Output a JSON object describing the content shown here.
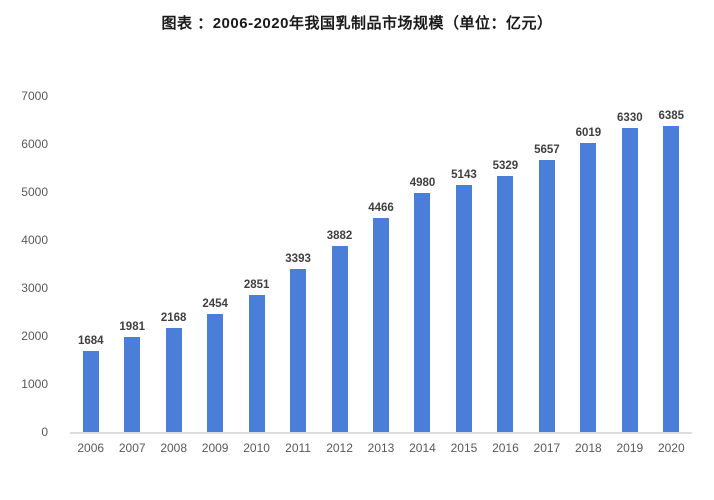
{
  "title": "图表 ：2006-2020年我国乳制品市场规模（单位：亿元）",
  "colors": {
    "bar": "#4a7ed9",
    "title_text": "#1a1a1a",
    "axis_text": "#595959",
    "value_label_text": "#404040",
    "baseline": "#dcdcdc",
    "background": "#ffffff"
  },
  "chart_data": {
    "type": "bar",
    "title": "图表 ：2006-2020年我国乳制品市场规模（单位：亿元）",
    "categories": [
      "2006",
      "2007",
      "2008",
      "2009",
      "2010",
      "2011",
      "2012",
      "2013",
      "2014",
      "2015",
      "2016",
      "2017",
      "2018",
      "2019",
      "2020"
    ],
    "values": [
      1684,
      1981,
      2168,
      2454,
      2851,
      3393,
      3882,
      4466,
      4980,
      5143,
      5329,
      5657,
      6019,
      6330,
      6385
    ],
    "unit": "亿元",
    "xlabel": "",
    "ylabel": "",
    "ylim": [
      0,
      7000
    ],
    "y_ticks": [
      0,
      1000,
      2000,
      3000,
      4000,
      5000,
      6000,
      7000
    ],
    "grid": false,
    "legend_position": "none",
    "data_labels": true
  }
}
